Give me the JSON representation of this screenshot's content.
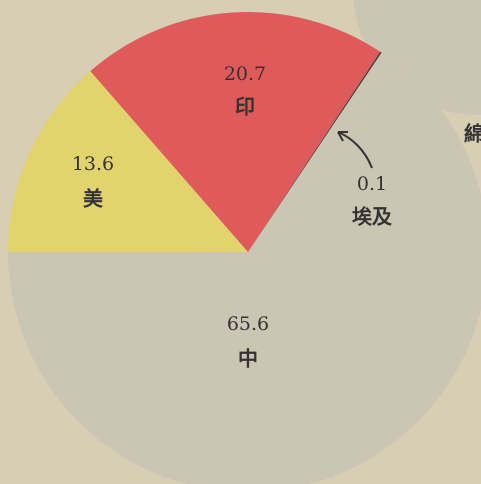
{
  "chart_data": {
    "type": "pie",
    "categories": [
      "中",
      "美",
      "印",
      "埃及"
    ],
    "values": [
      65.6,
      13.6,
      20.7,
      0.1
    ],
    "colors": [
      "#cbc5b3",
      "#e2d46c",
      "#df5b5b",
      "#3f3f3f"
    ],
    "annotations": [
      "綿"
    ]
  }
}
